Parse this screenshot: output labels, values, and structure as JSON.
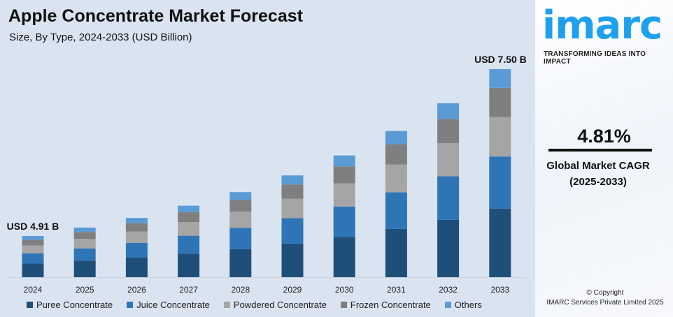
{
  "chart_data": {
    "type": "bar",
    "stacked": true,
    "title": "Apple Concentrate Market Forecast",
    "subtitle": "Size, By Type, 2024-2033 (USD Billion)",
    "categories": [
      "2024",
      "2025",
      "2026",
      "2027",
      "2028",
      "2029",
      "2030",
      "2031",
      "2032",
      "2033"
    ],
    "totals": [
      4.91,
      5.04,
      5.19,
      5.38,
      5.59,
      5.85,
      6.16,
      6.54,
      6.97,
      7.5
    ],
    "series": [
      {
        "name": "Puree Concentrate",
        "color": "#1f4e79",
        "share": 0.33
      },
      {
        "name": "Juice Concentrate",
        "color": "#2e75b6",
        "share": 0.25
      },
      {
        "name": "Powdered Concentrate",
        "color": "#a5a5a5",
        "share": 0.19
      },
      {
        "name": "Frozen Concentrate",
        "color": "#7f7f7f",
        "share": 0.14
      },
      {
        "name": "Others",
        "color": "#5b9bd5",
        "share": 0.09
      }
    ],
    "annotations": [
      {
        "category": "2024",
        "text": "USD 4.91 B"
      },
      {
        "category": "2033",
        "text": "USD 7.50 B"
      }
    ],
    "ylim": [
      4.27,
      7.5
    ],
    "grid": false,
    "legend": "bottom"
  },
  "side": {
    "logo": "imarc",
    "tagline": "TRANSFORMING IDEAS INTO IMPACT",
    "cagr": "4.81%",
    "cagr_label": "Global Market CAGR",
    "cagr_period": "(2025-2033)",
    "copyright": "© Copyright",
    "company": "IMARC Services Private Limited 2025"
  }
}
